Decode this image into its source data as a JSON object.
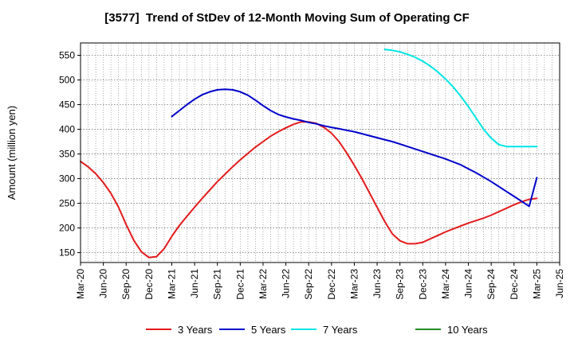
{
  "chart_data": {
    "type": "line",
    "title": "[3577]  Trend of StDev of 12-Month Moving Sum of Operating CF",
    "xlabel": "",
    "ylabel": "Amount (million yen)",
    "ylim": [
      130,
      575
    ],
    "yticks": [
      150,
      200,
      250,
      300,
      350,
      400,
      450,
      500,
      550
    ],
    "x_range": [
      "Mar-20",
      "Jun-25"
    ],
    "x_tick_labels": [
      "Mar-20",
      "Jun-20",
      "Sep-20",
      "Dec-20",
      "Mar-21",
      "Jun-21",
      "Sep-21",
      "Dec-21",
      "Mar-22",
      "Jun-22",
      "Sep-22",
      "Dec-22",
      "Mar-23",
      "Jun-23",
      "Sep-23",
      "Dec-23",
      "Mar-24",
      "Jun-24",
      "Sep-24",
      "Dec-24",
      "Mar-25",
      "Jun-25"
    ],
    "grid": true,
    "legend_position": "bottom",
    "series": [
      {
        "name": "3 Years",
        "color": "#e31a1c",
        "x": [
          "Mar-20",
          "Apr-20",
          "May-20",
          "Jun-20",
          "Jul-20",
          "Aug-20",
          "Sep-20",
          "Oct-20",
          "Nov-20",
          "Dec-20",
          "Jan-21",
          "Feb-21",
          "Mar-21",
          "Apr-21",
          "May-21",
          "Jun-21",
          "Jul-21",
          "Aug-21",
          "Sep-21",
          "Oct-21",
          "Nov-21",
          "Dec-21",
          "Jan-22",
          "Feb-22",
          "Mar-22",
          "Apr-22",
          "May-22",
          "Jun-22",
          "Jul-22",
          "Aug-22",
          "Sep-22",
          "Oct-22",
          "Nov-22",
          "Dec-22",
          "Jan-23",
          "Feb-23",
          "Mar-23",
          "Apr-23",
          "May-23",
          "Jun-23",
          "Jul-23",
          "Aug-23",
          "Sep-23",
          "Oct-23",
          "Nov-23",
          "Dec-23",
          "Jan-24",
          "Feb-24",
          "Mar-24",
          "Apr-24",
          "May-24",
          "Jun-24",
          "Jul-24",
          "Aug-24",
          "Sep-24",
          "Oct-24",
          "Nov-24",
          "Dec-24",
          "Jan-25",
          "Feb-25",
          "Mar-25"
        ],
        "values": [
          335,
          324,
          310,
          292,
          270,
          242,
          207,
          175,
          152,
          140,
          142,
          158,
          183,
          205,
          224,
          242,
          260,
          277,
          294,
          309,
          324,
          338,
          351,
          364,
          375,
          386,
          395,
          403,
          410,
          415,
          415,
          412,
          404,
          392,
          375,
          352,
          327,
          300,
          271,
          242,
          213,
          188,
          174,
          168,
          168,
          171,
          178,
          185,
          192,
          198,
          204,
          210,
          215,
          220,
          226,
          233,
          240,
          247,
          253,
          258,
          260
        ]
      },
      {
        "name": "5 Years",
        "color": "#0000cc",
        "x": [
          "Mar-21",
          "Apr-21",
          "May-21",
          "Jun-21",
          "Jul-21",
          "Aug-21",
          "Sep-21",
          "Oct-21",
          "Nov-21",
          "Dec-21",
          "Jan-22",
          "Feb-22",
          "Mar-22",
          "Apr-22",
          "May-22",
          "Jun-22",
          "Jul-22",
          "Aug-22",
          "Sep-22",
          "Oct-22",
          "Nov-22",
          "Dec-22",
          "Jan-23",
          "Feb-23",
          "Mar-23",
          "Apr-23",
          "May-23",
          "Jun-23",
          "Jul-23",
          "Aug-23",
          "Sep-23",
          "Oct-23",
          "Nov-23",
          "Dec-23",
          "Jan-24",
          "Feb-24",
          "Mar-24",
          "Apr-24",
          "May-24",
          "Jun-24",
          "Jul-24",
          "Aug-24",
          "Sep-24",
          "Oct-24",
          "Nov-24",
          "Dec-24",
          "Jan-25",
          "Feb-25",
          "Mar-25"
        ],
        "values": [
          426,
          438,
          450,
          461,
          470,
          476,
          480,
          481,
          480,
          476,
          469,
          459,
          448,
          438,
          430,
          425,
          421,
          418,
          414,
          411,
          407,
          404,
          401,
          398,
          395,
          391,
          387,
          383,
          379,
          375,
          370,
          365,
          360,
          355,
          350,
          345,
          340,
          334,
          328,
          320,
          312,
          303,
          294,
          284,
          274,
          264,
          254,
          244,
          302
        ]
      },
      {
        "name": "7 Years",
        "color": "#00e5e5",
        "x": [
          "Jul-23",
          "Aug-23",
          "Sep-23",
          "Oct-23",
          "Nov-23",
          "Dec-23",
          "Jan-24",
          "Feb-24",
          "Mar-24",
          "Apr-24",
          "May-24",
          "Jun-24",
          "Jul-24",
          "Aug-24",
          "Sep-24",
          "Oct-24",
          "Nov-24",
          "Dec-24",
          "Jan-25",
          "Feb-25",
          "Mar-25"
        ],
        "values": [
          562,
          560,
          557,
          552,
          546,
          538,
          528,
          516,
          502,
          486,
          467,
          446,
          423,
          400,
          382,
          369,
          365,
          365,
          365,
          365,
          365
        ]
      },
      {
        "name": "10 Years",
        "color": "#228b22",
        "x": [],
        "values": []
      }
    ]
  }
}
